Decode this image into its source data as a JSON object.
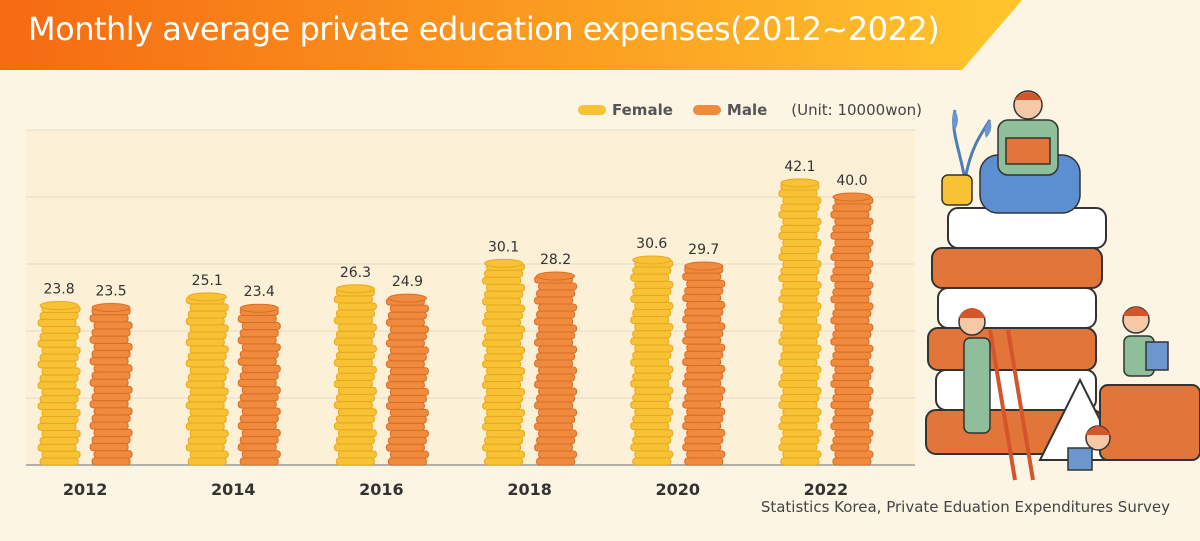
{
  "title": "Monthly average private education expenses(2012~2022)",
  "unit_label": "(Unit: 10000won)",
  "source": "Statistics Korea, Private Eduation Expenditures Survey",
  "colors": {
    "female": "#f7c233",
    "female_dark": "#e9a81f",
    "male": "#f08a3c",
    "male_dark": "#d86d28",
    "banner_start": "#f56a12",
    "banner_end": "#ffc62c",
    "background": "#fdf5e4"
  },
  "chart_data": {
    "type": "bar",
    "categories": [
      "2012",
      "2014",
      "2016",
      "2018",
      "2020",
      "2022"
    ],
    "series": [
      {
        "name": "Female",
        "values": [
          23.8,
          25.1,
          26.3,
          30.1,
          30.6,
          42.1
        ]
      },
      {
        "name": "Male",
        "values": [
          23.5,
          23.4,
          24.9,
          28.2,
          29.7,
          40.0
        ]
      }
    ],
    "unit": "(Unit: 10000won)",
    "ylim": [
      0,
      50
    ],
    "grid": true,
    "legend_position": "top-right"
  }
}
